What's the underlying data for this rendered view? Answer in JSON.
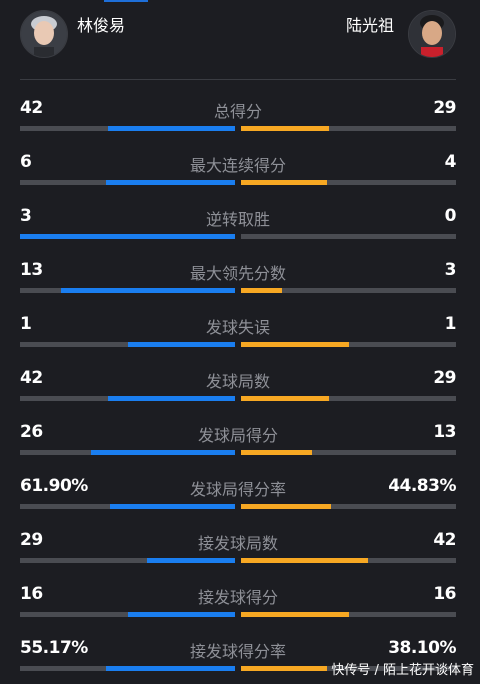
{
  "header": {
    "left_player": "林俊易",
    "right_player": "陆光祖"
  },
  "colors": {
    "background": "#1c1d22",
    "left_bar": "#1a7ef0",
    "right_bar": "#f7a823",
    "track": "#4a4c52",
    "label": "#8e9097"
  },
  "stats": [
    {
      "label": "总得分",
      "left": "42",
      "right": "29",
      "left_share": 0.59,
      "right_share": 0.41
    },
    {
      "label": "最大连续得分",
      "left": "6",
      "right": "4",
      "left_share": 0.6,
      "right_share": 0.4
    },
    {
      "label": "逆转取胜",
      "left": "3",
      "right": "0",
      "left_share": 1.0,
      "right_share": 0.0
    },
    {
      "label": "最大领先分数",
      "left": "13",
      "right": "3",
      "left_share": 0.81,
      "right_share": 0.19
    },
    {
      "label": "发球失误",
      "left": "1",
      "right": "1",
      "left_share": 0.5,
      "right_share": 0.5
    },
    {
      "label": "发球局数",
      "left": "42",
      "right": "29",
      "left_share": 0.59,
      "right_share": 0.41
    },
    {
      "label": "发球局得分",
      "left": "26",
      "right": "13",
      "left_share": 0.67,
      "right_share": 0.33
    },
    {
      "label": "发球局得分率",
      "left": "61.90%",
      "right": "44.83%",
      "left_share": 0.58,
      "right_share": 0.42
    },
    {
      "label": "接发球局数",
      "left": "29",
      "right": "42",
      "left_share": 0.41,
      "right_share": 0.59
    },
    {
      "label": "接发球得分",
      "left": "16",
      "right": "16",
      "left_share": 0.5,
      "right_share": 0.5
    },
    {
      "label": "接发球得分率",
      "left": "55.17%",
      "right": "38.10%",
      "left_share": 0.6,
      "right_share": 0.4
    }
  ],
  "watermark": "快传号 / 陌上花开谈体育"
}
